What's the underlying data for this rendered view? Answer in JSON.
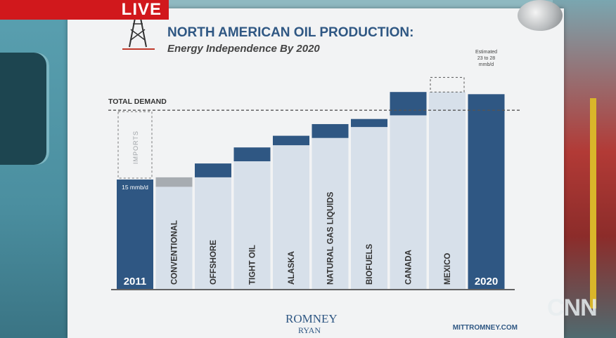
{
  "broadcast": {
    "live_label": "LIVE",
    "network_logo": "CNN"
  },
  "poster": {
    "footer_logo_top": "ROMNEY",
    "footer_logo_bottom": "RYAN",
    "footer_url": "MITTROMNEY.COM"
  },
  "chart_data": {
    "type": "bar",
    "subtype": "waterfall",
    "title": "NORTH AMERICAN OIL PRODUCTION:",
    "subtitle": "Energy Independence By 2020",
    "xlabel": "",
    "ylabel": "",
    "categories": [
      "2011",
      "CONVENTIONAL",
      "OFFSHORE",
      "TIGHT OIL",
      "ALASKA",
      "NATURAL GAS LIQUIDS",
      "BIOFUELS",
      "CANADA",
      "MEXICO",
      "2020"
    ],
    "segments": [
      {
        "category": "2011",
        "base": 0,
        "value": 15,
        "kind": "total"
      },
      {
        "category": "CONVENTIONAL",
        "base": 14,
        "value": 1.3,
        "kind": "change"
      },
      {
        "category": "OFFSHORE",
        "base": 15.3,
        "value": 1.9,
        "kind": "change"
      },
      {
        "category": "TIGHT OIL",
        "base": 17.5,
        "value": 1.9,
        "kind": "change"
      },
      {
        "category": "ALASKA",
        "base": 19.7,
        "value": 1.3,
        "kind": "change"
      },
      {
        "category": "NATURAL GAS LIQUIDS",
        "base": 20.7,
        "value": 1.9,
        "kind": "change"
      },
      {
        "category": "BIOFUELS",
        "base": 22.2,
        "value": 1.1,
        "kind": "change"
      },
      {
        "category": "CANADA",
        "base": 23.8,
        "value": 3.2,
        "kind": "change"
      },
      {
        "category": "MEXICO",
        "base": 27.0,
        "value": 2.0,
        "kind": "change_estimated"
      },
      {
        "category": "2020",
        "base": 0,
        "value": 26.7,
        "kind": "total"
      }
    ],
    "total_demand": 24.5,
    "total_demand_label": "TOTAL DEMAND",
    "imports_label": "IMPORTS",
    "bar_label_2011": "15 mmb/d",
    "annotation_2020": [
      "Estimated",
      "23 to 28",
      "mmb/d"
    ],
    "ylim": [
      0,
      29
    ],
    "grid": false,
    "legend": "none",
    "colors": {
      "total": "#2f5783",
      "change": "#2f5783",
      "conventional_change": "#a7acb1",
      "column_fill": "#d7e0ea",
      "dashed": "#555555",
      "title": "#2f5783",
      "text": "#333333"
    }
  }
}
